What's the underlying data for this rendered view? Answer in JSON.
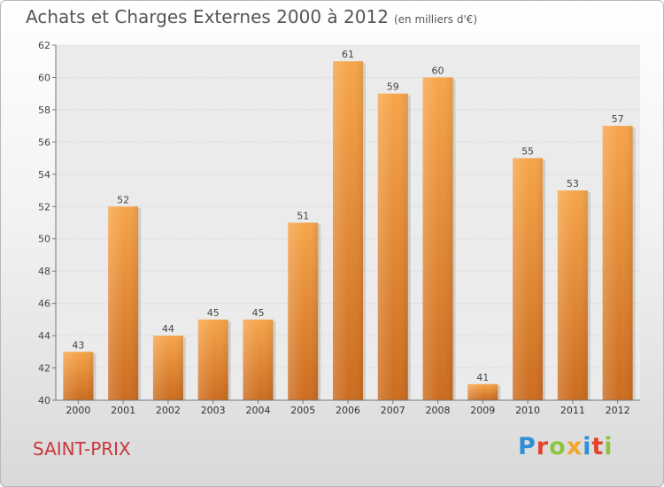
{
  "header": {
    "title": "Achats et Charges Externes 2000 à 2012",
    "subtitle": "(en milliers d'€)"
  },
  "footer": {
    "commune": "SAINT-PRIX",
    "logo_letters": [
      {
        "ch": "P",
        "color": "#2f8fd6"
      },
      {
        "ch": "r",
        "color": "#e0442e"
      },
      {
        "ch": "o",
        "color": "#8cc63e"
      },
      {
        "ch": "x",
        "color": "#f1a72b"
      },
      {
        "ch": "i",
        "color": "#2f8fd6"
      },
      {
        "ch": "t",
        "color": "#e0442e"
      },
      {
        "ch": "i",
        "color": "#8cc63e"
      }
    ]
  },
  "chart_data": {
    "type": "bar",
    "title": "Achats et Charges Externes 2000 à 2012",
    "subtitle": "(en milliers d'€)",
    "categories": [
      "2000",
      "2001",
      "2002",
      "2003",
      "2004",
      "2005",
      "2006",
      "2007",
      "2008",
      "2009",
      "2010",
      "2011",
      "2012"
    ],
    "values": [
      43,
      52,
      44,
      45,
      45,
      51,
      61,
      59,
      60,
      41,
      55,
      53,
      57
    ],
    "ylim": [
      40,
      62
    ],
    "yticks": [
      40,
      42,
      44,
      46,
      48,
      50,
      52,
      54,
      56,
      58,
      60,
      62
    ],
    "grid": true,
    "bar_color": "#f0993f",
    "bar_color_dark": "#c9691f",
    "grid_color": "#d6d6d6"
  }
}
